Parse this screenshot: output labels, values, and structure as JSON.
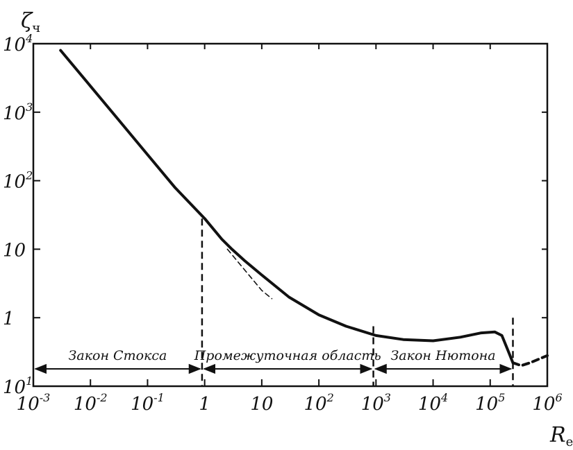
{
  "chart_data": {
    "type": "line",
    "title": "",
    "xlabel": "R",
    "xlabel_sub": "e",
    "ylabel": "ζ",
    "ylabel_sub": "ч",
    "xscale": "log",
    "yscale": "log",
    "xlim": [
      0.001,
      1000000
    ],
    "ylim": [
      0.1,
      10000
    ],
    "x_ticks": [
      {
        "base": "10",
        "exp": "-3"
      },
      {
        "base": "10",
        "exp": "-2"
      },
      {
        "base": "10",
        "exp": "-1"
      },
      {
        "base": "1",
        "exp": ""
      },
      {
        "base": "10",
        "exp": ""
      },
      {
        "base": "10",
        "exp": "2"
      },
      {
        "base": "10",
        "exp": "3"
      },
      {
        "base": "10",
        "exp": "4"
      },
      {
        "base": "10",
        "exp": "5"
      },
      {
        "base": "10",
        "exp": "6"
      }
    ],
    "y_ticks": [
      {
        "base": "10",
        "exp": "4"
      },
      {
        "base": "10",
        "exp": "3"
      },
      {
        "base": "10",
        "exp": "2"
      },
      {
        "base": "10",
        "exp": ""
      },
      {
        "base": "1",
        "exp": ""
      },
      {
        "base": "10",
        "exp": "1"
      }
    ],
    "grid": false,
    "legend": "none",
    "series": [
      {
        "style": "solid",
        "x": [
          0.003,
          0.01,
          0.03,
          0.1,
          0.3,
          1,
          2,
          3,
          5,
          10,
          30,
          100,
          300,
          1000,
          3000,
          10000,
          30000,
          70000,
          120000,
          160000,
          200000,
          250000
        ],
        "y": [
          8000,
          2400,
          800,
          240,
          80,
          28,
          14,
          10,
          6.8,
          4.2,
          2,
          1.1,
          0.75,
          0.55,
          0.48,
          0.46,
          0.52,
          0.6,
          0.62,
          0.55,
          0.35,
          0.22
        ]
      },
      {
        "style": "dashed",
        "x": [
          250000,
          350000,
          500000,
          1000000
        ],
        "y": [
          0.22,
          0.2,
          0.22,
          0.28
        ]
      },
      {
        "style": "dashed-thin",
        "x": [
          2.5,
          5,
          10,
          15
        ],
        "y": [
          10,
          5,
          2.5,
          1.9
        ]
      }
    ],
    "boundaries": [
      {
        "x": 0.9,
        "y_top": 28
      },
      {
        "x": 900,
        "y_top": 0.75
      },
      {
        "x": 250000,
        "y_top": 1
      }
    ],
    "regions": [
      {
        "label": "Закон Стокса",
        "x_start": 0.001,
        "x_end": 0.9
      },
      {
        "label": "Промежуточная область",
        "x_start": 0.9,
        "x_end": 900
      },
      {
        "label": "Закон Нютона",
        "x_start": 900,
        "x_end": 250000
      }
    ]
  }
}
